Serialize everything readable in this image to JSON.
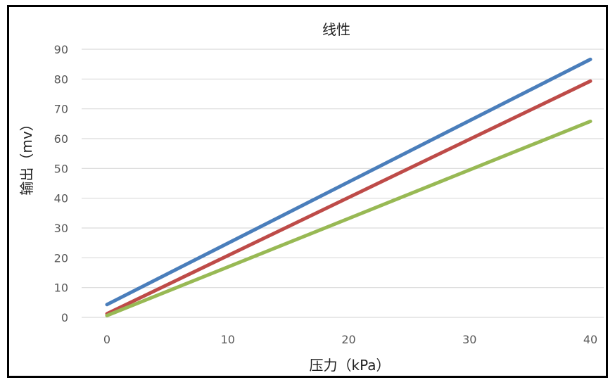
{
  "chart_data": {
    "type": "line",
    "title": "线性",
    "xlabel": "压力（kPa）",
    "ylabel": "输出（mv）",
    "xlim": [
      0,
      40
    ],
    "ylim": [
      0,
      90
    ],
    "xticks": [
      "0",
      "10",
      "20",
      "30",
      "40"
    ],
    "yticks": [
      "0",
      "10",
      "20",
      "30",
      "40",
      "50",
      "60",
      "70",
      "80",
      "90"
    ],
    "grid": true,
    "legend": "none",
    "series": [
      {
        "x": [
          0,
          40
        ],
        "values": [
          4.3,
          86.6
        ],
        "color": "#4a7ebb"
      },
      {
        "x": [
          0,
          40
        ],
        "values": [
          1.2,
          79.3
        ],
        "color": "#be4b48"
      },
      {
        "x": [
          0,
          40
        ],
        "values": [
          0.6,
          65.8
        ],
        "color": "#98b954"
      }
    ]
  }
}
